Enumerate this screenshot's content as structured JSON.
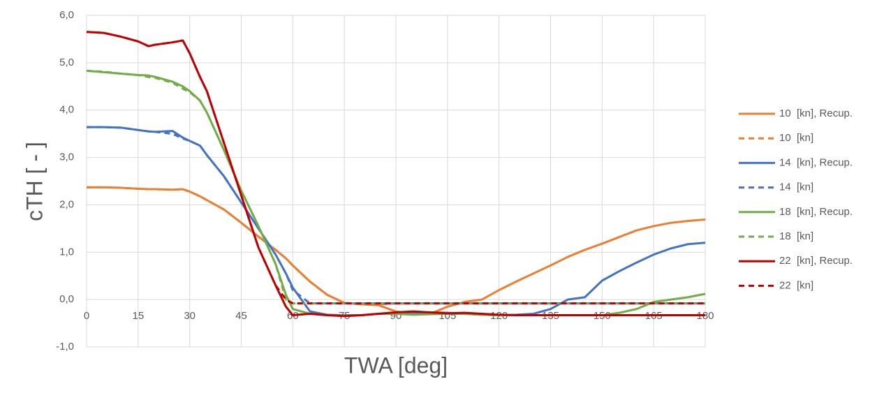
{
  "chart_data": {
    "type": "line",
    "x_label": "TWA [deg]",
    "y_label": "cTH [ - ]",
    "x": [
      0,
      5,
      10,
      15,
      18,
      20,
      25,
      28,
      30,
      33,
      35,
      40,
      45,
      50,
      55,
      58,
      60,
      65,
      70,
      75,
      80,
      85,
      90,
      95,
      100,
      105,
      110,
      115,
      120,
      125,
      130,
      135,
      140,
      145,
      150,
      155,
      160,
      165,
      170,
      175,
      180
    ],
    "xlim": [
      0,
      180
    ],
    "xticks": [
      0,
      15,
      30,
      45,
      60,
      75,
      90,
      105,
      120,
      135,
      150,
      165,
      180
    ],
    "ylim": [
      -1,
      6
    ],
    "yticks": [
      {
        "value": -1,
        "label": "-1,0"
      },
      {
        "value": 0,
        "label": "0,0"
      },
      {
        "value": 1,
        "label": "1,0"
      },
      {
        "value": 2,
        "label": "2,0"
      },
      {
        "value": 3,
        "label": "3,0"
      },
      {
        "value": 4,
        "label": "4,0"
      },
      {
        "value": 5,
        "label": "5,0"
      },
      {
        "value": 6,
        "label": "6,0"
      }
    ],
    "grid": true,
    "legend": "right",
    "series": [
      {
        "name": "10  [kn], Recup.",
        "color": "#ed7d31",
        "style": "solid",
        "values": [
          2.37,
          2.37,
          2.36,
          2.34,
          2.33,
          2.33,
          2.32,
          2.33,
          2.28,
          2.18,
          2.1,
          1.9,
          1.62,
          1.33,
          1.05,
          0.87,
          0.72,
          0.38,
          0.1,
          -0.07,
          -0.1,
          -0.12,
          -0.25,
          -0.3,
          -0.3,
          -0.15,
          -0.05,
          0,
          0.2,
          0.38,
          0.55,
          0.72,
          0.9,
          1.05,
          1.18,
          1.32,
          1.46,
          1.55,
          1.62,
          1.66,
          1.69
        ]
      },
      {
        "name": "10  [kn]",
        "color": "#ed7d31",
        "style": "dashed",
        "values": [
          2.37,
          2.37,
          2.36,
          2.34,
          2.33,
          2.33,
          2.32,
          2.33,
          2.28,
          2.18,
          2.1,
          1.9,
          1.62,
          1.33,
          1.05,
          0.87,
          0.72,
          0.38,
          0.1,
          -0.07,
          -0.1,
          -0.1,
          -0.08,
          -0.08,
          -0.08,
          -0.08,
          -0.08,
          -0.08,
          -0.08,
          -0.08,
          -0.08,
          -0.08,
          -0.08,
          -0.08,
          -0.08,
          -0.08,
          -0.08,
          -0.08,
          -0.08,
          -0.08,
          -0.08
        ]
      },
      {
        "name": "14  [kn], Recup.",
        "color": "#4472c4",
        "style": "solid",
        "values": [
          3.64,
          3.64,
          3.63,
          3.58,
          3.55,
          3.54,
          3.56,
          3.42,
          3.35,
          3.25,
          3.05,
          2.6,
          2.05,
          1.5,
          0.95,
          0.55,
          0.25,
          -0.25,
          -0.32,
          -0.33,
          -0.33,
          -0.3,
          -0.27,
          -0.27,
          -0.27,
          -0.28,
          -0.3,
          -0.32,
          -0.33,
          -0.32,
          -0.3,
          -0.2,
          0,
          0.05,
          0.4,
          0.6,
          0.78,
          0.95,
          1.08,
          1.17,
          1.2
        ]
      },
      {
        "name": "14  [kn]",
        "color": "#4472c4",
        "style": "dashed",
        "values": [
          3.64,
          3.64,
          3.63,
          3.58,
          3.55,
          3.54,
          3.5,
          3.4,
          3.35,
          3.25,
          3.05,
          2.6,
          2.05,
          1.5,
          0.95,
          0.55,
          0.2,
          -0.08,
          -0.08,
          -0.08,
          -0.08,
          -0.08,
          -0.08,
          -0.08,
          -0.08,
          -0.08,
          -0.08,
          -0.08,
          -0.08,
          -0.08,
          -0.08,
          -0.08,
          -0.08,
          -0.08,
          -0.08,
          -0.08,
          -0.08,
          -0.08,
          -0.08,
          -0.08,
          -0.08
        ]
      },
      {
        "name": "18  [kn], Recup.",
        "color": "#70ad47",
        "style": "solid",
        "values": [
          4.83,
          4.8,
          4.77,
          4.74,
          4.73,
          4.7,
          4.6,
          4.5,
          4.4,
          4.2,
          3.95,
          3.15,
          2.3,
          1.55,
          0.75,
          0.1,
          -0.2,
          -0.3,
          -0.33,
          -0.34,
          -0.33,
          -0.3,
          -0.3,
          -0.32,
          -0.31,
          -0.3,
          -0.3,
          -0.32,
          -0.33,
          -0.33,
          -0.33,
          -0.33,
          -0.33,
          -0.33,
          -0.33,
          -0.28,
          -0.2,
          -0.05,
          0,
          0.05,
          0.12
        ]
      },
      {
        "name": "18  [kn]",
        "color": "#70ad47",
        "style": "dashed",
        "values": [
          4.83,
          4.81,
          4.77,
          4.74,
          4.7,
          4.68,
          4.58,
          4.45,
          4.38,
          4.2,
          3.95,
          3.15,
          2.3,
          1.55,
          0.75,
          0,
          -0.08,
          -0.08,
          -0.08,
          -0.08,
          -0.08,
          -0.08,
          -0.08,
          -0.08,
          -0.08,
          -0.08,
          -0.08,
          -0.08,
          -0.08,
          -0.08,
          -0.08,
          -0.08,
          -0.08,
          -0.08,
          -0.08,
          -0.08,
          -0.08,
          -0.08,
          -0.08,
          -0.08,
          -0.08
        ]
      },
      {
        "name": "22  [kn], Recup.",
        "color": "#c00000",
        "style": "solid",
        "values": [
          5.65,
          5.63,
          5.55,
          5.45,
          5.35,
          5.38,
          5.43,
          5.47,
          5.2,
          4.7,
          4.4,
          3.3,
          2.2,
          1.1,
          0.3,
          -0.15,
          -0.33,
          -0.3,
          -0.33,
          -0.35,
          -0.33,
          -0.3,
          -0.27,
          -0.25,
          -0.27,
          -0.29,
          -0.28,
          -0.3,
          -0.32,
          -0.33,
          -0.33,
          -0.33,
          -0.33,
          -0.33,
          -0.33,
          -0.33,
          -0.33,
          -0.33,
          -0.33,
          -0.33,
          -0.33
        ]
      },
      {
        "name": "22  [kn]",
        "color": "#c00000",
        "style": "dashed",
        "values": [
          5.65,
          5.63,
          5.55,
          5.45,
          5.35,
          5.38,
          5.43,
          5.47,
          5.2,
          4.7,
          4.4,
          3.3,
          2.2,
          1.1,
          0.3,
          0,
          -0.08,
          -0.08,
          -0.08,
          -0.08,
          -0.08,
          -0.08,
          -0.08,
          -0.08,
          -0.08,
          -0.08,
          -0.08,
          -0.08,
          -0.08,
          -0.08,
          -0.08,
          -0.08,
          -0.08,
          -0.08,
          -0.08,
          -0.08,
          -0.08,
          -0.08,
          -0.08,
          -0.08,
          -0.08
        ]
      }
    ]
  }
}
